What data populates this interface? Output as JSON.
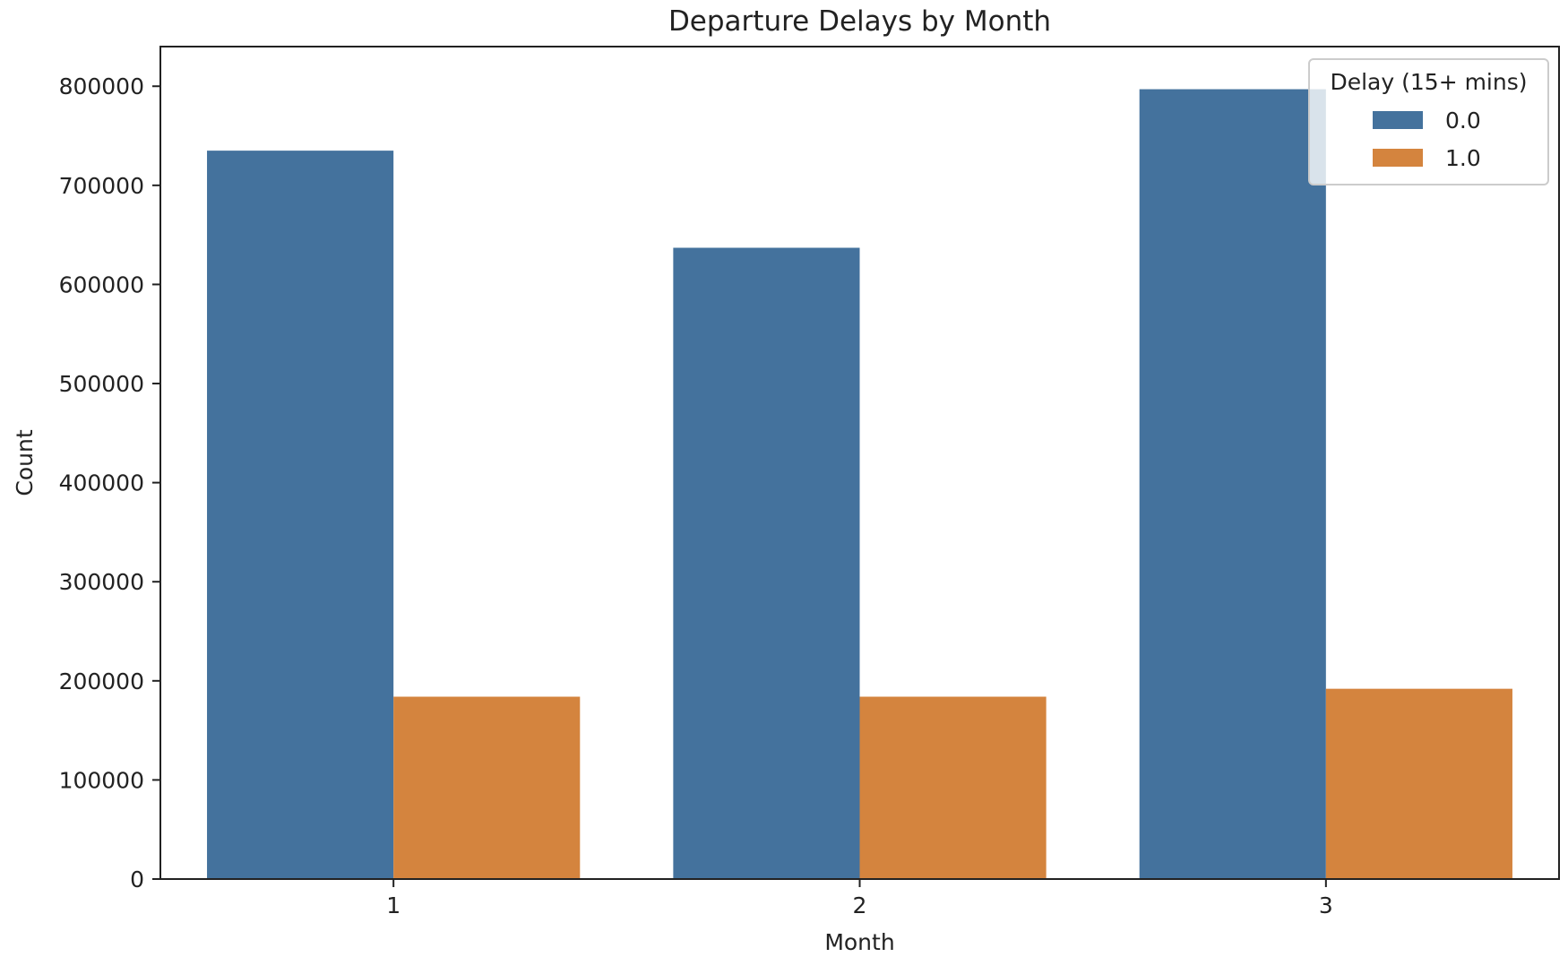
{
  "chart_data": {
    "type": "bar",
    "title": "Departure Delays by Month",
    "xlabel": "Month",
    "ylabel": "Count",
    "categories": [
      "1",
      "2",
      "3"
    ],
    "ylim": [
      0,
      840000
    ],
    "yticks": [
      0,
      100000,
      200000,
      300000,
      400000,
      500000,
      600000,
      700000,
      800000
    ],
    "grid": false,
    "legend": {
      "title": "Delay (15+ mins)",
      "placement": "top-right"
    },
    "series": [
      {
        "name": "0.0",
        "color": "#44729d",
        "values": [
          735000,
          637000,
          797000
        ]
      },
      {
        "name": "1.0",
        "color": "#d4843e",
        "values": [
          184000,
          184000,
          192000
        ]
      }
    ]
  }
}
